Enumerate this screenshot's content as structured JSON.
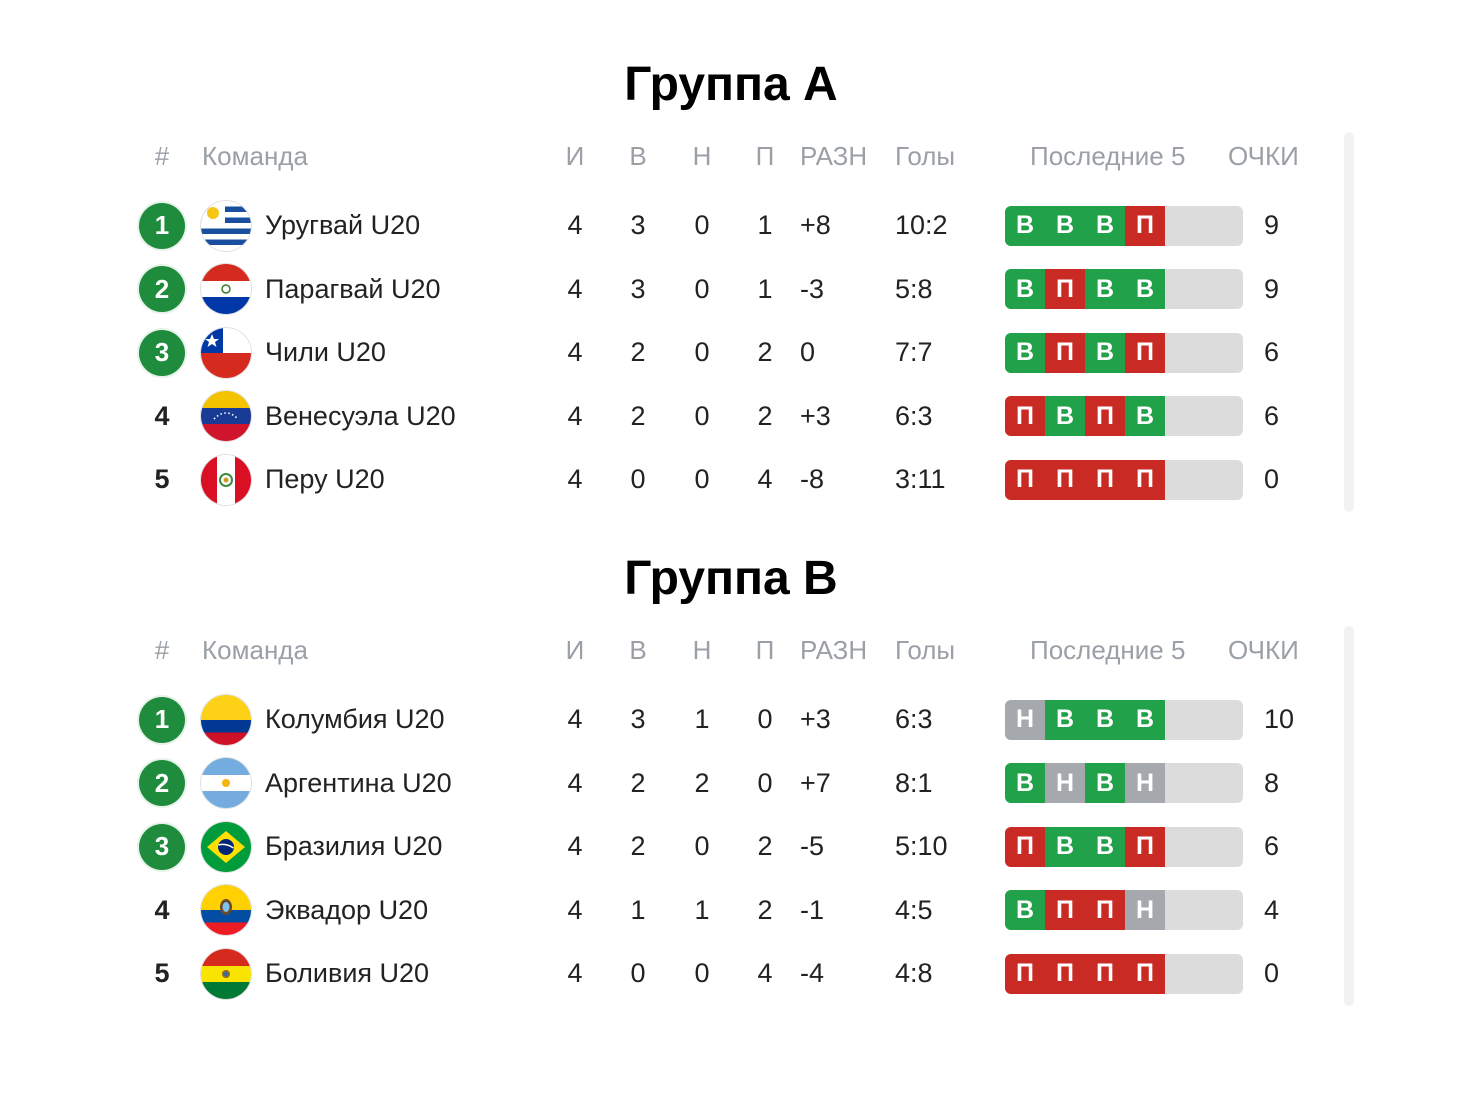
{
  "groups": [
    {
      "title": "Группа A",
      "headers": {
        "pos": "#",
        "team": "Команда",
        "played": "И",
        "won": "В",
        "drawn": "Н",
        "lost": "П",
        "diff": "РАЗН",
        "goals": "Голы",
        "last5": "Последние 5",
        "points": "ОЧКИ"
      },
      "rows": [
        {
          "pos": "1",
          "badge": true,
          "flag": "uruguay-flag-icon",
          "team": "Уругвай U20",
          "played": "4",
          "won": "3",
          "drawn": "0",
          "lost": "1",
          "diff": "+8",
          "goals": "10:2",
          "form": [
            "В",
            "В",
            "В",
            "П"
          ],
          "points": "9"
        },
        {
          "pos": "2",
          "badge": true,
          "flag": "paraguay-flag-icon",
          "team": "Парагвай U20",
          "played": "4",
          "won": "3",
          "drawn": "0",
          "lost": "1",
          "diff": "-3",
          "goals": "5:8",
          "form": [
            "В",
            "П",
            "В",
            "В"
          ],
          "points": "9"
        },
        {
          "pos": "3",
          "badge": true,
          "flag": "chile-flag-icon",
          "team": "Чили U20",
          "played": "4",
          "won": "2",
          "drawn": "0",
          "lost": "2",
          "diff": "0",
          "goals": "7:7",
          "form": [
            "В",
            "П",
            "В",
            "П"
          ],
          "points": "6"
        },
        {
          "pos": "4",
          "badge": false,
          "flag": "venezuela-flag-icon",
          "team": "Венесуэла U20",
          "played": "4",
          "won": "2",
          "drawn": "0",
          "lost": "2",
          "diff": "+3",
          "goals": "6:3",
          "form": [
            "П",
            "В",
            "П",
            "В"
          ],
          "points": "6"
        },
        {
          "pos": "5",
          "badge": false,
          "flag": "peru-flag-icon",
          "team": "Перу U20",
          "played": "4",
          "won": "0",
          "drawn": "0",
          "lost": "4",
          "diff": "-8",
          "goals": "3:11",
          "form": [
            "П",
            "П",
            "П",
            "П"
          ],
          "points": "0"
        }
      ]
    },
    {
      "title": "Группа B",
      "headers": {
        "pos": "#",
        "team": "Команда",
        "played": "И",
        "won": "В",
        "drawn": "Н",
        "lost": "П",
        "diff": "РАЗН",
        "goals": "Голы",
        "last5": "Последние 5",
        "points": "ОЧКИ"
      },
      "rows": [
        {
          "pos": "1",
          "badge": true,
          "flag": "colombia-flag-icon",
          "team": "Колумбия U20",
          "played": "4",
          "won": "3",
          "drawn": "1",
          "lost": "0",
          "diff": "+3",
          "goals": "6:3",
          "form": [
            "Н",
            "В",
            "В",
            "В"
          ],
          "points": "10"
        },
        {
          "pos": "2",
          "badge": true,
          "flag": "argentina-flag-icon",
          "team": "Аргентина U20",
          "played": "4",
          "won": "2",
          "drawn": "2",
          "lost": "0",
          "diff": "+7",
          "goals": "8:1",
          "form": [
            "В",
            "Н",
            "В",
            "Н"
          ],
          "points": "8"
        },
        {
          "pos": "3",
          "badge": true,
          "flag": "brazil-flag-icon",
          "team": "Бразилия U20",
          "played": "4",
          "won": "2",
          "drawn": "0",
          "lost": "2",
          "diff": "-5",
          "goals": "5:10",
          "form": [
            "П",
            "В",
            "В",
            "П"
          ],
          "points": "6"
        },
        {
          "pos": "4",
          "badge": false,
          "flag": "ecuador-flag-icon",
          "team": "Эквадор U20",
          "played": "4",
          "won": "1",
          "drawn": "1",
          "lost": "2",
          "diff": "-1",
          "goals": "4:5",
          "form": [
            "В",
            "П",
            "П",
            "Н"
          ],
          "points": "4"
        },
        {
          "pos": "5",
          "badge": false,
          "flag": "bolivia-flag-icon",
          "team": "Боливия U20",
          "played": "4",
          "won": "0",
          "drawn": "0",
          "lost": "4",
          "diff": "-4",
          "goals": "4:8",
          "form": [
            "П",
            "П",
            "П",
            "П"
          ],
          "points": "0"
        }
      ]
    }
  ],
  "colors": {
    "win": "#21a24a",
    "loss": "#c92a24",
    "draw": "#a5a9ad",
    "qualified": "#1f8b3c"
  }
}
